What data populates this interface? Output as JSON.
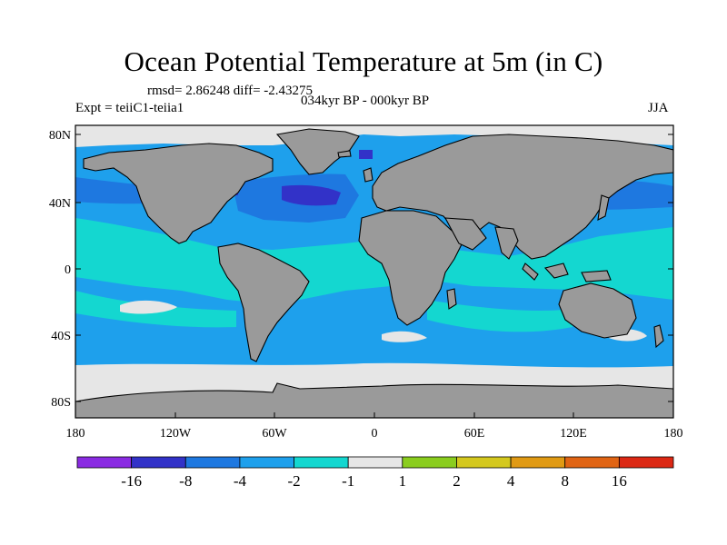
{
  "title": "Ocean Potential Temperature at 5m (in C)",
  "stats_line": "rmsd= 2.86248 diff= -2.43275",
  "experiment": "Expt = teiiC1-teiia1",
  "period": "034kyr BP - 000kyr BP",
  "season": "JJA",
  "colors": {
    "land": "#9a9a9a",
    "near_zero": "#e6e6e6",
    "anom_m1": "#14d7d0",
    "anom_m2": "#1ea0ec",
    "anom_m4": "#1e78e0",
    "anom_m8": "#3232c8",
    "anom_m16": "#6a1ed6"
  },
  "lat_ticks": [
    "80N",
    "40N",
    "0",
    "40S",
    "80S"
  ],
  "lon_ticks": [
    "180",
    "120W",
    "60W",
    "0",
    "60E",
    "120E",
    "180"
  ],
  "colorbar": {
    "labels": [
      "-16",
      "-8",
      "-4",
      "-2",
      "-1",
      "1",
      "2",
      "4",
      "8",
      "16"
    ],
    "colors": [
      "#8a2be2",
      "#3232c8",
      "#1e78e0",
      "#1ea0ec",
      "#14d7d0",
      "#e6e6e6",
      "#8acd1e",
      "#d4c81e",
      "#e09a14",
      "#e06414",
      "#dc2814"
    ]
  }
}
